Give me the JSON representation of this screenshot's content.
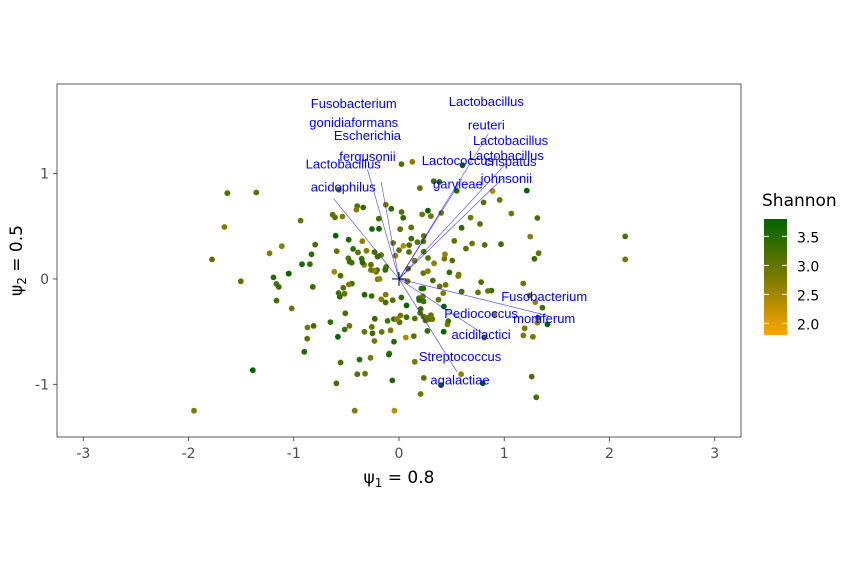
{
  "chart_data": {
    "type": "scatter",
    "title": "",
    "xlabel": "ψ1 = 0.8",
    "ylabel": "ψ2 = 0.5",
    "xlabel_parts": {
      "symbol": "ψ",
      "sub": "1",
      "rest": " = 0.8"
    },
    "ylabel_parts": {
      "symbol": "ψ",
      "sub": "2",
      "rest": " = 0.5"
    },
    "xlim": [
      -3.25,
      3.25
    ],
    "ylim": [
      -1.5,
      1.85
    ],
    "xticks": [
      -3,
      -2,
      -1,
      0,
      1,
      2,
      3
    ],
    "xtick_labels": [
      "-3",
      "-2",
      "-1",
      "0",
      "1",
      "2",
      "3"
    ],
    "yticks": [
      -1,
      0,
      1
    ],
    "ytick_labels": [
      "-1",
      "0",
      "1"
    ],
    "grid": false,
    "legend": {
      "title": "Shannon",
      "position": "right",
      "range": [
        1.8,
        3.8
      ],
      "ticks": [
        2.0,
        2.5,
        3.0,
        3.5
      ],
      "tick_labels": [
        "2.0",
        "2.5",
        "3.0",
        "3.5"
      ],
      "color_low": "#FFA500",
      "color_mid": "#7A7A00",
      "color_high": "#006400"
    },
    "arrow_color": "#0000ff",
    "origin_marker": "+",
    "arrows": [
      {
        "label": [
          "Fusobacterium",
          "gonidiaformans"
        ],
        "x": -0.3,
        "y": 1.04
      },
      {
        "label": [
          "Escherichia",
          "fergusonii"
        ],
        "x": -0.17,
        "y": 0.92
      },
      {
        "label": [
          "Lactobacillus",
          "acidophilus"
        ],
        "x": -0.62,
        "y": 0.76
      },
      {
        "label": [
          "Lactobacillus",
          "reuteri"
        ],
        "x": 0.85,
        "y": 1.38
      },
      {
        "label": [
          "Lactobacillus",
          "crispatus"
        ],
        "x": 1.02,
        "y": 1.1
      },
      {
        "label": [
          "Lactobacillus",
          "johnsonii"
        ],
        "x": 1.0,
        "y": 0.97
      },
      {
        "label": [
          "Lactococcus",
          "garvieae"
        ],
        "x": 0.6,
        "y": 0.95
      },
      {
        "label": [
          "Fusobacterium",
          "mortiferum"
        ],
        "x": 1.42,
        "y": -0.35
      },
      {
        "label": [
          "Pediococcus",
          "acidilactici"
        ],
        "x": 0.8,
        "y": -0.52
      },
      {
        "label": [
          "Streptococcus",
          "agalactiae"
        ],
        "x": 0.55,
        "y": -0.88
      }
    ],
    "label_positions": [
      {
        "x": -0.43,
        "y": 1.62,
        "y2": 1.44
      },
      {
        "x": -0.3,
        "y": 1.32,
        "y2": 1.12
      },
      {
        "x": -0.53,
        "y": 1.05,
        "y2": 0.83
      },
      {
        "x": 0.83,
        "y": 1.64,
        "y2": 1.42
      },
      {
        "x": 1.06,
        "y": 1.27,
        "y2": 1.07
      },
      {
        "x": 1.02,
        "y": 1.13,
        "y2": 0.91
      },
      {
        "x": 0.56,
        "y": 1.08,
        "y2": 0.86
      },
      {
        "x": 1.38,
        "y": -0.21,
        "y2": -0.42
      },
      {
        "x": 0.78,
        "y": -0.37,
        "y2": -0.57
      },
      {
        "x": 0.58,
        "y": -0.78,
        "y2": -1.0
      }
    ],
    "points_shown": 220,
    "random_seed": 7
  }
}
